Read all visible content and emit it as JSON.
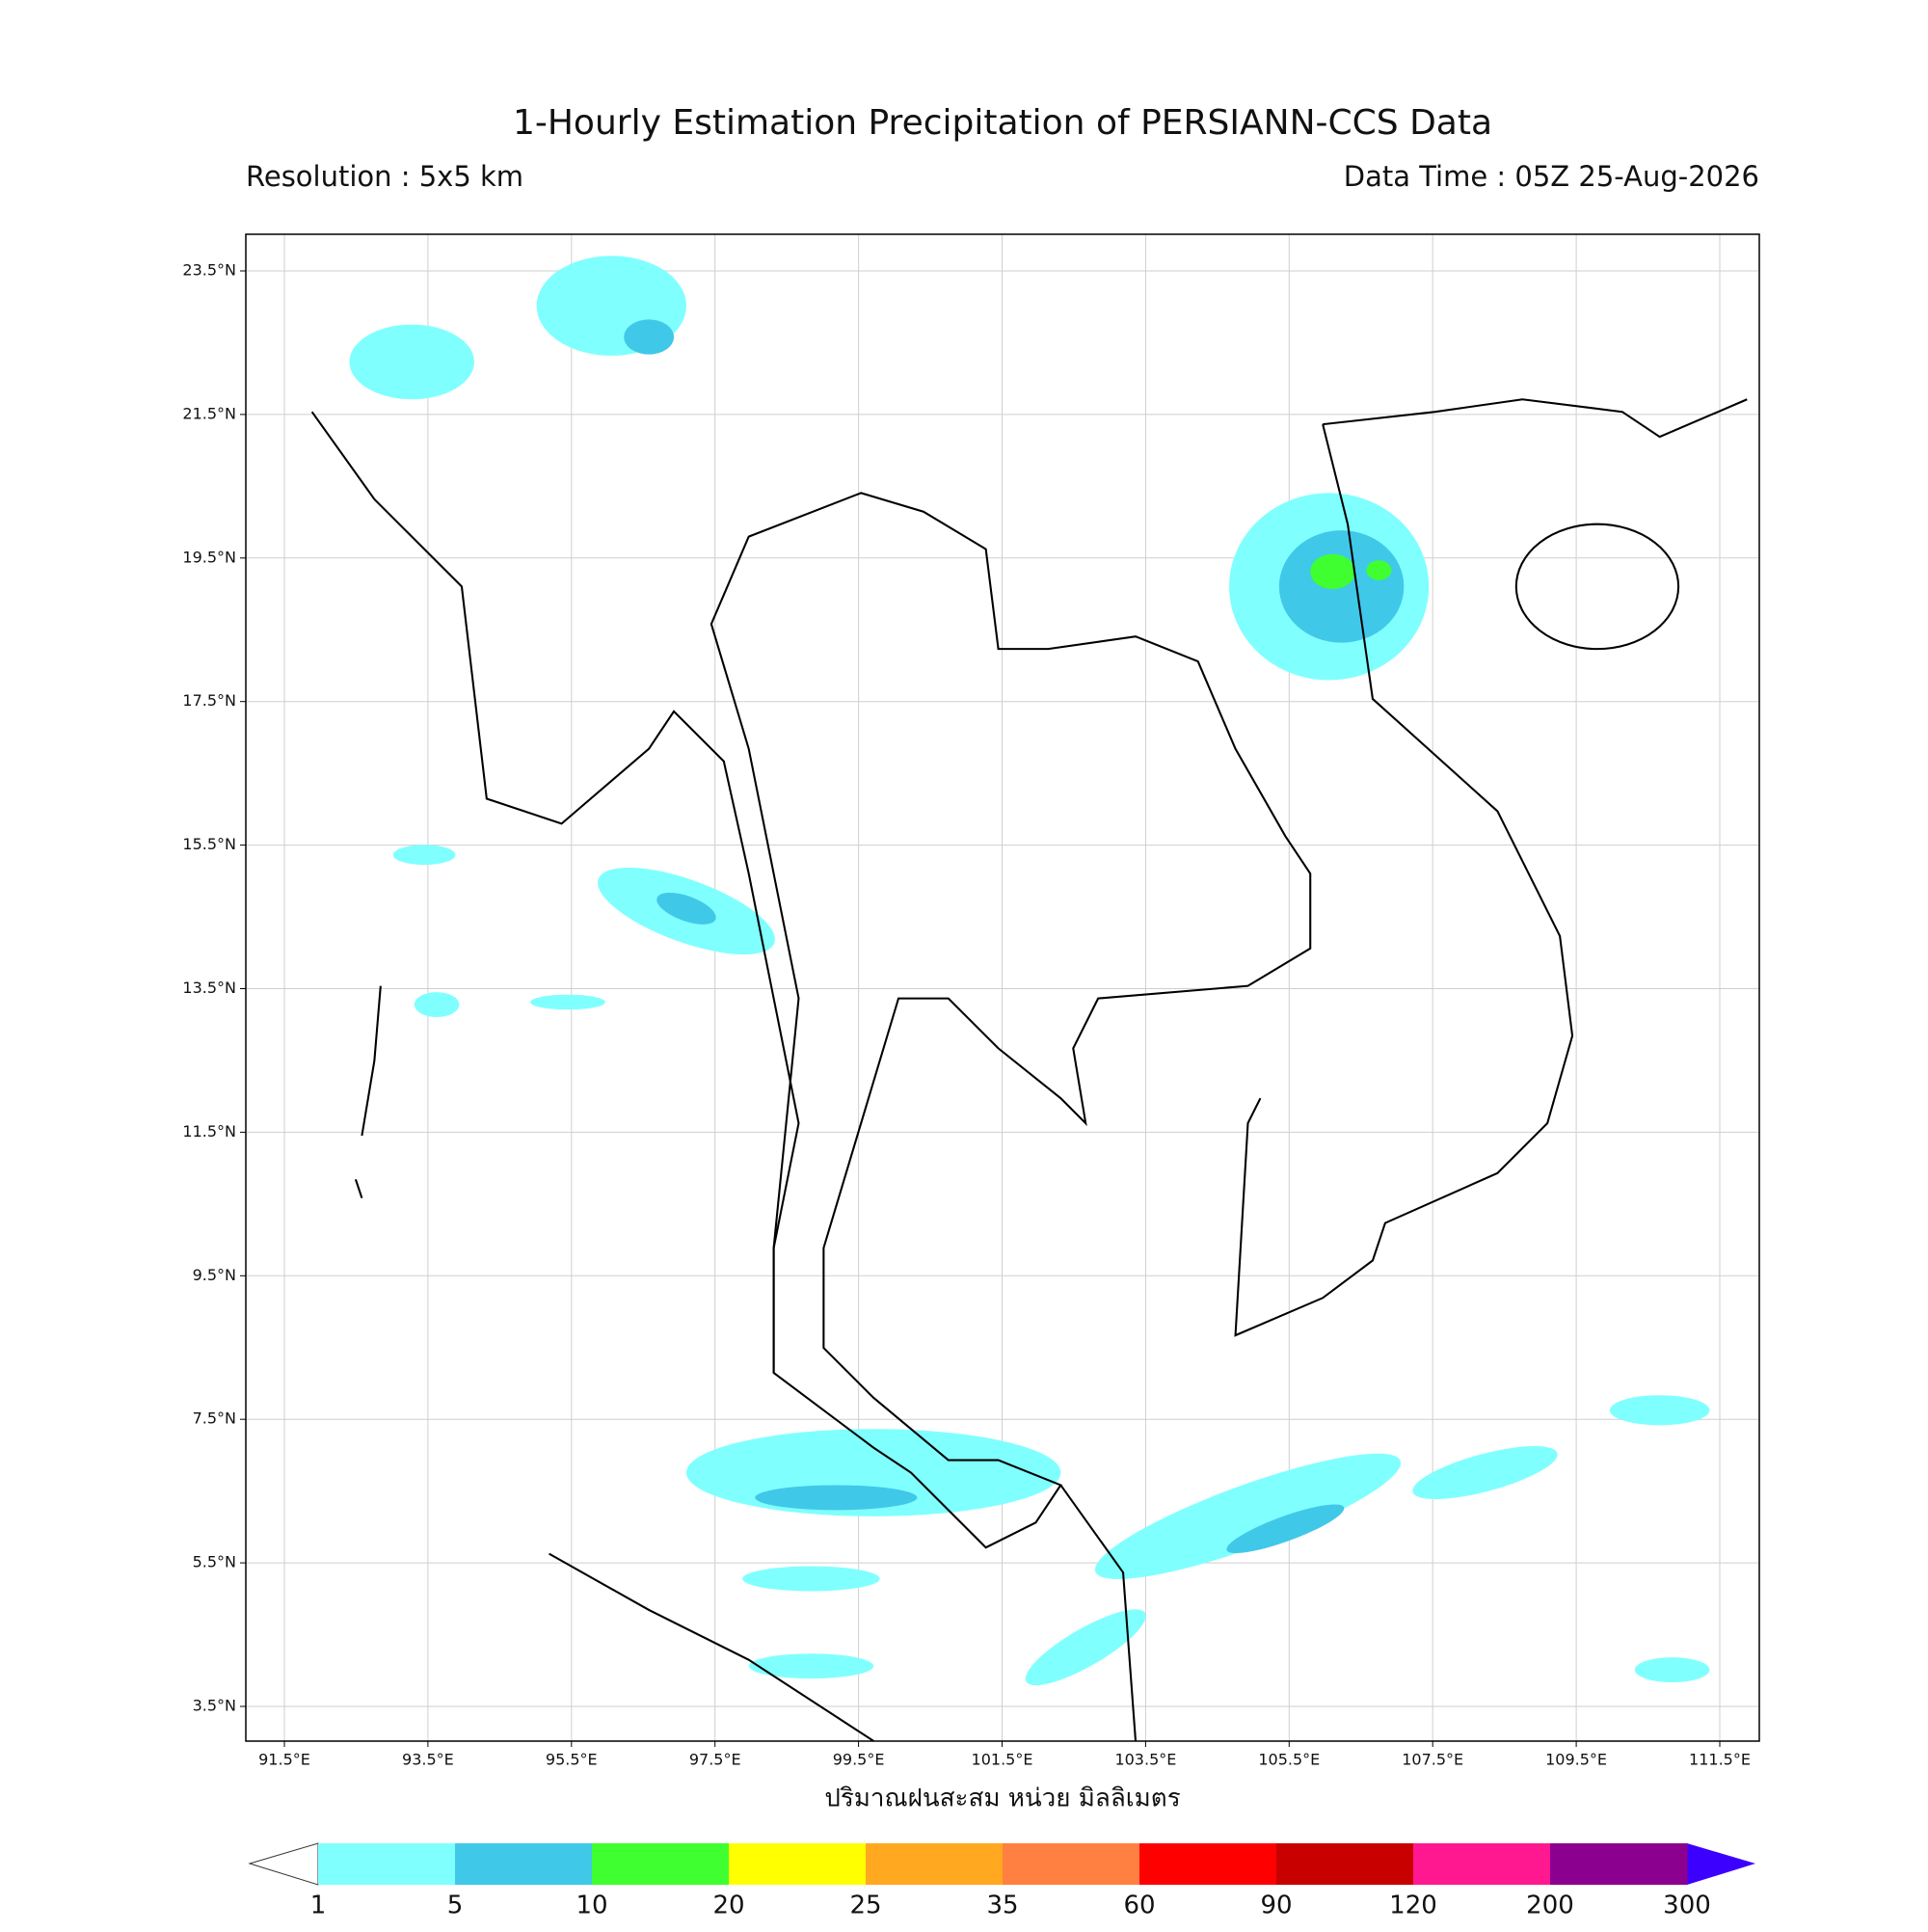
{
  "header": {
    "title": "1-Hourly Estimation Precipitation of PERSIANN-CCS Data",
    "resolution": "Resolution : 5x5 km",
    "data_time": "Data Time : 05Z 25-Aug-2026"
  },
  "map": {
    "lat_ticks": [
      "23.5°N",
      "21.5°N",
      "19.5°N",
      "17.5°N",
      "15.5°N",
      "13.5°N",
      "11.5°N",
      "9.5°N",
      "7.5°N",
      "5.5°N",
      "3.5°N"
    ],
    "lon_ticks": [
      "91.5°E",
      "93.5°E",
      "95.5°E",
      "97.5°E",
      "99.5°E",
      "101.5°E",
      "103.5°E",
      "105.5°E",
      "107.5°E",
      "109.5°E",
      "111.5°E"
    ],
    "xlabel": "ปริมาณฝนสะสม หน่วย มิลลิเมตร"
  },
  "colorbar": {
    "levels": [
      1,
      5,
      10,
      20,
      25,
      35,
      60,
      90,
      120,
      200,
      300
    ],
    "colors": [
      "#80ffff",
      "#40c8e8",
      "#40ff30",
      "#ffff00",
      "#ffa820",
      "#ff8040",
      "#ff0000",
      "#c80000",
      "#ff1890",
      "#8c0090"
    ],
    "under_color": "#ffffff",
    "over_color": "#3c00ff"
  }
}
